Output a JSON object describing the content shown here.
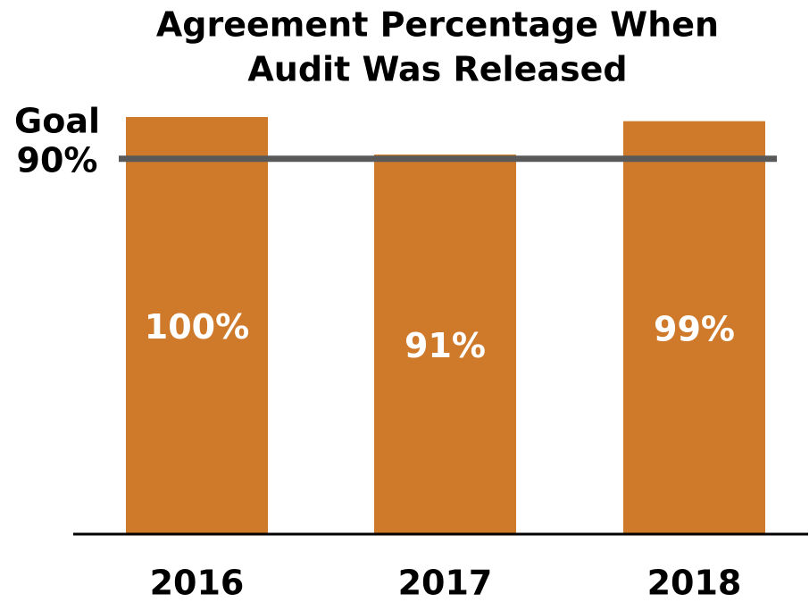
{
  "chart_data": {
    "type": "bar",
    "title": [
      "Agreement Percentage When",
      "Audit Was Released"
    ],
    "categories": [
      "2016",
      "2017",
      "2018"
    ],
    "values": [
      100,
      91,
      99
    ],
    "value_labels": [
      "100%",
      "91%",
      "99%"
    ],
    "color": "#cf7a2b",
    "ylim": [
      0,
      100
    ],
    "goal": {
      "value": 90,
      "label": "90%",
      "title": "Goal",
      "color": "#595959"
    }
  }
}
